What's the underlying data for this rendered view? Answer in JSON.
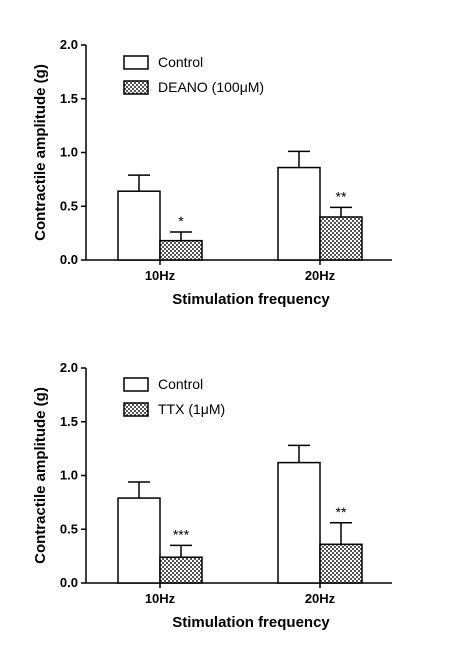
{
  "chart_data": [
    {
      "type": "bar",
      "title": "",
      "xlabel": "Stimulation frequency",
      "ylabel": "Contractile amplitude (g)",
      "ylim": [
        0,
        2.0
      ],
      "yticks": [
        "0.0",
        "0.5",
        "1.0",
        "1.5",
        "2.0"
      ],
      "categories": [
        "10Hz",
        "20Hz"
      ],
      "legend_position": "top-left",
      "series": [
        {
          "name": "Control",
          "fill": "white",
          "values": [
            0.64,
            0.86
          ],
          "errors": [
            0.15,
            0.15
          ]
        },
        {
          "name": "DEANO (100μM)",
          "fill": "checker",
          "values": [
            0.18,
            0.4
          ],
          "errors": [
            0.08,
            0.09
          ]
        }
      ],
      "annotations": [
        {
          "category": 0,
          "series": 1,
          "text": "*"
        },
        {
          "category": 1,
          "series": 1,
          "text": "**"
        }
      ]
    },
    {
      "type": "bar",
      "title": "",
      "xlabel": "Stimulation frequency",
      "ylabel": "Contractile amplitude (g)",
      "ylim": [
        0,
        2.0
      ],
      "yticks": [
        "0.0",
        "0.5",
        "1.0",
        "1.5",
        "2.0"
      ],
      "categories": [
        "10Hz",
        "20Hz"
      ],
      "legend_position": "top-left",
      "series": [
        {
          "name": "Control",
          "fill": "white",
          "values": [
            0.79,
            1.12
          ],
          "errors": [
            0.15,
            0.16
          ]
        },
        {
          "name": "TTX (1μM)",
          "fill": "checker",
          "values": [
            0.24,
            0.36
          ],
          "errors": [
            0.11,
            0.2
          ]
        }
      ],
      "annotations": [
        {
          "category": 0,
          "series": 1,
          "text": "***"
        },
        {
          "category": 1,
          "series": 1,
          "text": "**"
        }
      ]
    }
  ]
}
